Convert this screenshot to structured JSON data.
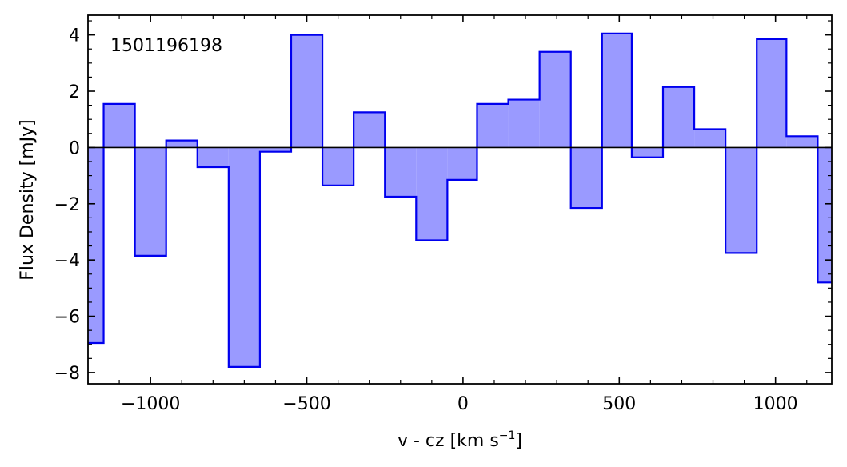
{
  "chart_data": {
    "type": "bar",
    "style": "step-histogram",
    "annotation": "1501196198",
    "xlabel": "v - cz [km s",
    "xlabel_sup": "−1",
    "xlabel_end": "]",
    "ylabel": "Flux Density [mJy]",
    "xlim": [
      -1200,
      1180
    ],
    "ylim": [
      -8.4,
      4.7
    ],
    "x_ticks": [
      -1000,
      -500,
      0,
      500,
      1000
    ],
    "x_tick_labels": [
      "−1000",
      "−500",
      "0",
      "500",
      "1000"
    ],
    "y_ticks": [
      -8,
      -6,
      -4,
      -2,
      0,
      2,
      4
    ],
    "y_tick_labels": [
      "−8",
      "−6",
      "−4",
      "−2",
      "0",
      "2",
      "4"
    ],
    "zero_line": true,
    "grid": false,
    "colors": {
      "line": "#0000ee",
      "fill": "#9a9aff",
      "axis": "#000000"
    },
    "bins": [
      {
        "x0": -1200,
        "x1": -1150,
        "value": -6.95
      },
      {
        "x0": -1150,
        "x1": -1050,
        "value": 1.55
      },
      {
        "x0": -1050,
        "x1": -950,
        "value": -3.85
      },
      {
        "x0": -950,
        "x1": -850,
        "value": 0.25
      },
      {
        "x0": -850,
        "x1": -750,
        "value": -0.7
      },
      {
        "x0": -750,
        "x1": -650,
        "value": -7.8
      },
      {
        "x0": -650,
        "x1": -550,
        "value": -0.15
      },
      {
        "x0": -550,
        "x1": -450,
        "value": 4.0
      },
      {
        "x0": -450,
        "x1": -350,
        "value": -1.35
      },
      {
        "x0": -350,
        "x1": -250,
        "value": 1.25
      },
      {
        "x0": -250,
        "x1": -150,
        "value": -1.75
      },
      {
        "x0": -150,
        "x1": -50,
        "value": -3.3
      },
      {
        "x0": -50,
        "x1": 45,
        "value": -1.15
      },
      {
        "x0": 45,
        "x1": 145,
        "value": 1.55
      },
      {
        "x0": 145,
        "x1": 245,
        "value": 1.7
      },
      {
        "x0": 245,
        "x1": 345,
        "value": 3.4
      },
      {
        "x0": 345,
        "x1": 445,
        "value": -2.15
      },
      {
        "x0": 445,
        "x1": 540,
        "value": 4.05
      },
      {
        "x0": 540,
        "x1": 640,
        "value": -0.35
      },
      {
        "x0": 640,
        "x1": 740,
        "value": 2.15
      },
      {
        "x0": 740,
        "x1": 840,
        "value": 0.65
      },
      {
        "x0": 840,
        "x1": 940,
        "value": -3.75
      },
      {
        "x0": 940,
        "x1": 1035,
        "value": 3.85
      },
      {
        "x0": 1035,
        "x1": 1135,
        "value": 0.4
      },
      {
        "x0": 1135,
        "x1": 1180,
        "value": -4.8
      }
    ]
  }
}
